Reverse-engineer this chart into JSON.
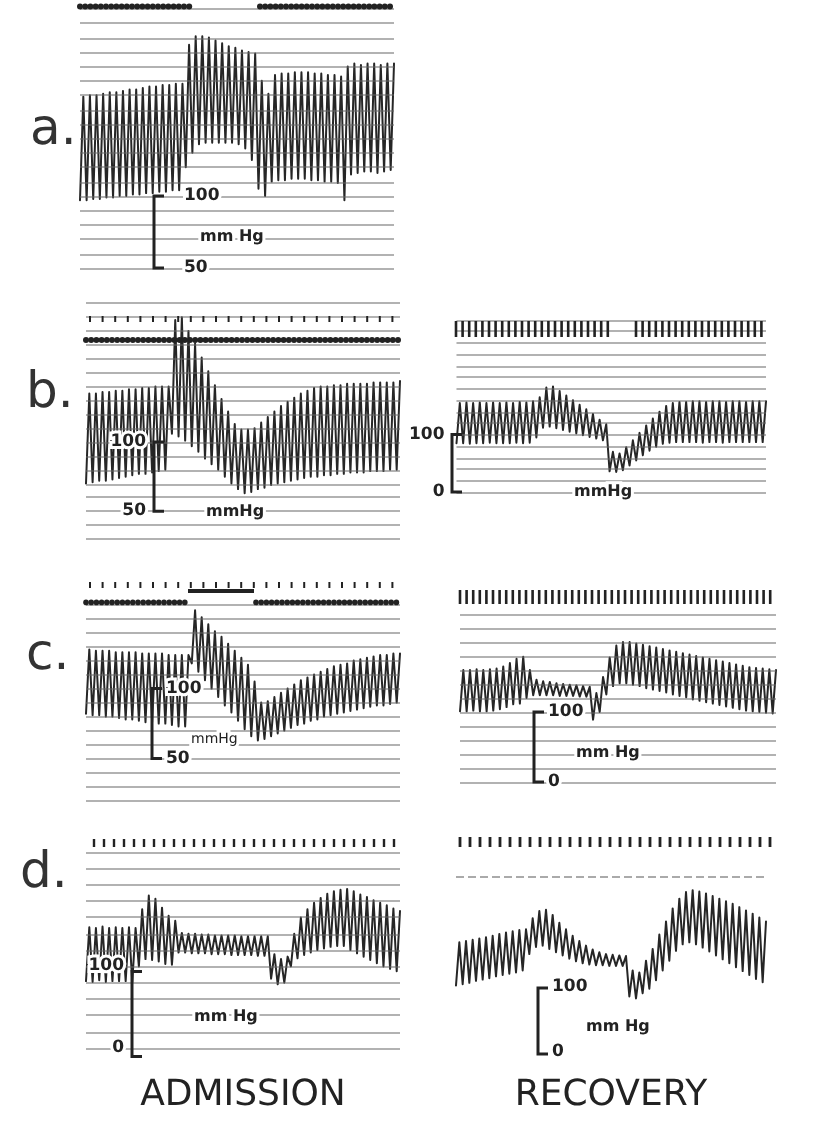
{
  "chart_data": [
    {
      "type": "line",
      "title": "a.",
      "ylabel": "mm Hg",
      "color": "#262626",
      "grid": "y",
      "tick_labels": "y",
      "ylim": [
        50,
        230
      ],
      "yticks": [
        50,
        {
          "value": 60,
          "label": null
        },
        {
          "value": 70,
          "label": null
        },
        {
          "value": 80,
          "label": null
        },
        {
          "value": 90,
          "label": null
        },
        100,
        {
          "value": 110,
          "label": null
        },
        {
          "value": 120,
          "label": null
        },
        {
          "value": 130,
          "label": null
        },
        {
          "value": 140,
          "label": null
        },
        {
          "value": 150,
          "label": null
        },
        {
          "value": 160,
          "label": null
        },
        {
          "value": 170,
          "label": null
        },
        {
          "value": 180,
          "label": null
        },
        {
          "value": 190,
          "label": null
        },
        {
          "value": 200,
          "label": null
        },
        {
          "value": 210,
          "label": null
        },
        {
          "value": 220,
          "label": null
        },
        {
          "value": 230,
          "label": null
        }
      ],
      "categories": [
        null,
        null,
        null,
        null,
        null,
        null,
        null,
        null,
        null,
        null,
        null,
        null,
        null,
        null,
        null,
        null,
        null,
        null,
        null,
        null,
        null,
        null,
        null,
        null,
        null,
        null,
        null,
        null,
        null,
        null,
        null,
        null,
        null,
        null,
        null,
        null,
        null,
        null,
        null,
        null,
        null,
        null,
        null,
        null,
        null,
        null,
        null,
        null,
        null,
        null,
        null,
        null,
        null,
        null,
        null,
        null,
        null,
        null,
        null,
        null,
        null,
        null,
        null,
        null,
        null,
        null,
        null,
        null,
        null,
        null,
        null,
        null,
        null,
        null,
        null,
        null,
        null,
        null,
        null,
        null,
        null,
        null,
        null,
        null,
        null,
        null,
        null,
        null,
        null,
        null,
        null,
        null,
        null,
        null,
        null,
        null
      ],
      "values": [
        97,
        169,
        97,
        170,
        98,
        170,
        98,
        171,
        99,
        172,
        99,
        172,
        100,
        173,
        100,
        174,
        101,
        174,
        101,
        175,
        102,
        176,
        102,
        176,
        103,
        177,
        103,
        177,
        104,
        178,
        104,
        178,
        120,
        205,
        130,
        211,
        136,
        211,
        137,
        210,
        137,
        208,
        137,
        206,
        137,
        204,
        137,
        203,
        136,
        201,
        133,
        200,
        125,
        199,
        105,
        180,
        100,
        171,
        110,
        184,
        111,
        185,
        111,
        185,
        112,
        186,
        112,
        186,
        112,
        186,
        111,
        185,
        111,
        185,
        110,
        184,
        110,
        184,
        109,
        183,
        97,
        190,
        115,
        192,
        116,
        191,
        117,
        192,
        117,
        192,
        116,
        191,
        117,
        192,
        118,
        192
      ]
    },
    {
      "type": "line",
      "title": "b.",
      "ylabel": "mmHg",
      "color": "#262626",
      "grid": "y",
      "tick_labels": "y",
      "ylim": [
        30,
        200
      ],
      "yticks": [
        {
          "value": 30,
          "label": null
        },
        {
          "value": 40,
          "label": null
        },
        50,
        {
          "value": 60,
          "label": null
        },
        {
          "value": 70,
          "label": null
        },
        {
          "value": 80,
          "label": null
        },
        {
          "value": 90,
          "label": null
        },
        100,
        {
          "value": 110,
          "label": null
        },
        {
          "value": 120,
          "label": null
        },
        {
          "value": 130,
          "label": null
        },
        {
          "value": 140,
          "label": null
        },
        {
          "value": 150,
          "label": null
        },
        {
          "value": 160,
          "label": null
        },
        {
          "value": 170,
          "label": null
        },
        {
          "value": 180,
          "label": null
        },
        {
          "value": 190,
          "label": null
        },
        {
          "value": 200,
          "label": null
        }
      ],
      "categories": [
        null,
        null,
        null,
        null,
        null,
        null,
        null,
        null,
        null,
        null,
        null,
        null,
        null,
        null,
        null,
        null,
        null,
        null,
        null,
        null,
        null,
        null,
        null,
        null,
        null,
        null,
        null,
        null,
        null,
        null,
        null,
        null,
        null,
        null,
        null,
        null,
        null,
        null,
        null,
        null,
        null,
        null,
        null,
        null,
        null,
        null,
        null,
        null,
        null,
        null,
        null,
        null,
        null,
        null,
        null,
        null,
        null,
        null,
        null,
        null,
        null,
        null,
        null,
        null,
        null,
        null,
        null,
        null,
        null,
        null,
        null,
        null,
        null,
        null,
        null,
        null,
        null,
        null,
        null,
        null,
        null,
        null,
        null,
        null,
        null,
        null,
        null,
        null,
        null,
        null,
        null,
        null,
        null,
        null,
        null,
        null
      ],
      "values": [
        70,
        135,
        71,
        135,
        72,
        136,
        72,
        136,
        73,
        137,
        74,
        137,
        75,
        138,
        76,
        138,
        77,
        139,
        77,
        139,
        78,
        140,
        79,
        140,
        80,
        140,
        106,
        188,
        104,
        190,
        101,
        180,
        97,
        171,
        93,
        161,
        88,
        151,
        84,
        141,
        80,
        131,
        75,
        122,
        70,
        113,
        66,
        109,
        63,
        109,
        64,
        110,
        66,
        114,
        67,
        118,
        69,
        122,
        70,
        126,
        71,
        129,
        72,
        132,
        73,
        135,
        74,
        137,
        75,
        139,
        75,
        140,
        76,
        140,
        76,
        141,
        77,
        141,
        77,
        142,
        78,
        142,
        78,
        142,
        78,
        142,
        79,
        143,
        79,
        143,
        79,
        143,
        80,
        143,
        80,
        144
      ]
    },
    {
      "type": "line",
      "ylabel": "mmHg",
      "color": "#262626",
      "grid": "y",
      "tick_labels": "y",
      "ylim": [
        0,
        300
      ],
      "yticks": [
        0,
        {
          "value": 20,
          "label": null
        },
        {
          "value": 40,
          "label": null
        },
        {
          "value": 60,
          "label": null
        },
        {
          "value": 80,
          "label": null
        },
        100,
        {
          "value": 120,
          "label": null
        },
        {
          "value": 140,
          "label": null
        },
        {
          "value": 160,
          "label": null
        },
        {
          "value": 180,
          "label": null
        },
        {
          "value": 200,
          "label": null
        },
        {
          "value": 220,
          "label": null
        },
        {
          "value": 240,
          "label": null
        },
        {
          "value": 260,
          "label": null
        },
        {
          "value": 280,
          "label": null
        },
        {
          "value": 300,
          "label": null
        }
      ],
      "categories": [
        null,
        null,
        null,
        null,
        null,
        null,
        null,
        null,
        null,
        null,
        null,
        null,
        null,
        null,
        null,
        null,
        null,
        null,
        null,
        null,
        null,
        null,
        null,
        null,
        null,
        null,
        null,
        null,
        null,
        null,
        null,
        null,
        null,
        null,
        null,
        null,
        null,
        null,
        null,
        null,
        null,
        null,
        null,
        null,
        null,
        null,
        null,
        null,
        null,
        null,
        null,
        null,
        null,
        null,
        null,
        null,
        null,
        null,
        null,
        null,
        null,
        null,
        null,
        null,
        null,
        null,
        null,
        null,
        null,
        null,
        null,
        null,
        null,
        null,
        null,
        null,
        null,
        null,
        null,
        null,
        null,
        null,
        null,
        null,
        null,
        null,
        null,
        null,
        null,
        null,
        null,
        null,
        null,
        null
      ],
      "values": [
        85,
        155,
        85,
        156,
        84,
        155,
        85,
        156,
        85,
        155,
        86,
        156,
        85,
        155,
        85,
        156,
        85,
        155,
        86,
        157,
        85,
        156,
        86,
        158,
        95,
        165,
        112,
        182,
        114,
        184,
        111,
        176,
        108,
        168,
        105,
        160,
        102,
        152,
        99,
        144,
        96,
        136,
        93,
        126,
        90,
        118,
        36,
        70,
        35,
        67,
        38,
        78,
        46,
        90,
        55,
        103,
        64,
        116,
        72,
        128,
        79,
        140,
        84,
        150,
        86,
        155,
        87,
        157,
        87,
        157,
        87,
        158,
        87,
        158,
        86,
        157,
        87,
        158,
        87,
        158,
        86,
        157,
        87,
        158,
        87,
        158,
        87,
        157,
        87,
        158,
        87,
        158,
        87,
        158
      ]
    },
    {
      "type": "line",
      "title": "c.",
      "ylabel": "mmHg",
      "color": "#262626",
      "grid": "y",
      "tick_labels": "y",
      "ylim": [
        20,
        160
      ],
      "yticks": [
        {
          "value": 20,
          "label": null
        },
        {
          "value": 30,
          "label": null
        },
        {
          "value": 40,
          "label": null
        },
        50,
        {
          "value": 60,
          "label": null
        },
        {
          "value": 70,
          "label": null
        },
        {
          "value": 80,
          "label": null
        },
        {
          "value": 90,
          "label": null
        },
        100,
        {
          "value": 110,
          "label": null
        },
        {
          "value": 120,
          "label": null
        },
        {
          "value": 130,
          "label": null
        },
        {
          "value": 140,
          "label": null
        },
        {
          "value": 150,
          "label": null
        },
        {
          "value": 160,
          "label": null
        }
      ],
      "categories": [
        null,
        null,
        null,
        null,
        null,
        null,
        null,
        null,
        null,
        null,
        null,
        null,
        null,
        null,
        null,
        null,
        null,
        null,
        null,
        null,
        null,
        null,
        null,
        null,
        null,
        null,
        null,
        null,
        null,
        null,
        null,
        null,
        null,
        null,
        null,
        null,
        null,
        null,
        null,
        null,
        null,
        null,
        null,
        null,
        null,
        null,
        null,
        null,
        null,
        null,
        null,
        null,
        null,
        null,
        null,
        null,
        null,
        null,
        null,
        null,
        null,
        null,
        null,
        null,
        null,
        null,
        null,
        null,
        null,
        null,
        null,
        null,
        null,
        null,
        null,
        null,
        null,
        null,
        null,
        null,
        null,
        null,
        null,
        null,
        null,
        null,
        null,
        null,
        null,
        null,
        null,
        null,
        null,
        null,
        null,
        null
      ],
      "values": [
        82,
        128,
        81,
        127,
        81,
        127,
        80,
        127,
        80,
        126,
        79,
        126,
        78,
        126,
        78,
        126,
        77,
        125,
        76,
        125,
        76,
        125,
        75,
        125,
        75,
        124,
        74,
        124,
        73,
        124,
        73,
        124,
        118,
        156,
        112,
        151,
        106,
        146,
        100,
        141,
        94,
        137,
        88,
        132,
        83,
        127,
        77,
        122,
        71,
        117,
        66,
        105,
        63,
        90,
        64,
        91,
        66,
        94,
        68,
        97,
        70,
        100,
        72,
        103,
        74,
        106,
        75,
        108,
        77,
        110,
        78,
        112,
        80,
        114,
        81,
        116,
        82,
        117,
        83,
        118,
        84,
        120,
        85,
        121,
        86,
        122,
        87,
        123,
        88,
        124,
        88,
        124,
        89,
        125,
        90,
        125
      ]
    },
    {
      "type": "line",
      "ylabel": "mm Hg",
      "color": "#262626",
      "grid": "y",
      "tick_labels": "y",
      "ylim": [
        0,
        240
      ],
      "yticks": [
        0,
        {
          "value": 20,
          "label": null
        },
        {
          "value": 40,
          "label": null
        },
        {
          "value": 60,
          "label": null
        },
        {
          "value": 80,
          "label": null
        },
        100,
        {
          "value": 120,
          "label": null
        },
        {
          "value": 140,
          "label": null
        },
        {
          "value": 160,
          "label": null
        },
        {
          "value": 180,
          "label": null
        },
        {
          "value": 200,
          "label": null
        },
        {
          "value": 220,
          "label": null
        },
        {
          "value": 240,
          "label": null
        }
      ],
      "categories": [
        null,
        null,
        null,
        null,
        null,
        null,
        null,
        null,
        null,
        null,
        null,
        null,
        null,
        null,
        null,
        null,
        null,
        null,
        null,
        null,
        null,
        null,
        null,
        null,
        null,
        null,
        null,
        null,
        null,
        null,
        null,
        null,
        null,
        null,
        null,
        null,
        null,
        null,
        null,
        null,
        null,
        null,
        null,
        null,
        null,
        null,
        null,
        null,
        null,
        null,
        null,
        null,
        null,
        null,
        null,
        null,
        null,
        null,
        null,
        null,
        null,
        null,
        null,
        null,
        null,
        null,
        null,
        null,
        null,
        null,
        null,
        null,
        null,
        null,
        null,
        null,
        null,
        null,
        null,
        null,
        null,
        null,
        null,
        null,
        null,
        null,
        null,
        null,
        null,
        null,
        null,
        null,
        null,
        null,
        null,
        null
      ],
      "values": [
        101,
        160,
        101,
        160,
        102,
        161,
        101,
        160,
        101,
        161,
        102,
        162,
        104,
        165,
        107,
        170,
        111,
        176,
        112,
        179,
        120,
        160,
        124,
        146,
        124,
        144,
        124,
        143,
        124,
        141,
        123,
        140,
        123,
        139,
        123,
        138,
        122,
        137,
        122,
        136,
        89,
        127,
        100,
        150,
        125,
        178,
        137,
        195,
        141,
        200,
        141,
        200,
        139,
        198,
        137,
        196,
        134,
        194,
        132,
        192,
        130,
        190,
        128,
        188,
        125,
        186,
        123,
        184,
        121,
        182,
        118,
        180,
        116,
        178,
        114,
        176,
        112,
        174,
        110,
        172,
        108,
        170,
        106,
        168,
        104,
        166,
        102,
        164,
        101,
        163,
        100,
        162,
        99,
        161,
        98,
        160
      ]
    },
    {
      "type": "line",
      "title": "d.",
      "xlabel": "ADMISSION",
      "ylabel": "mm Hg",
      "color": "#262626",
      "grid": "y",
      "tick_labels": "y",
      "ylim": [
        0,
        240
      ],
      "yticks": [
        0,
        {
          "value": 20,
          "label": null
        },
        {
          "value": 40,
          "label": null
        },
        {
          "value": 60,
          "label": null
        },
        {
          "value": 80,
          "label": null
        },
        100,
        {
          "value": 120,
          "label": null
        },
        {
          "value": 140,
          "label": null
        },
        {
          "value": 160,
          "label": null
        },
        {
          "value": 180,
          "label": null
        },
        {
          "value": 200,
          "label": null
        },
        {
          "value": 220,
          "label": null
        },
        {
          "value": 240,
          "label": null
        }
      ],
      "categories": [
        null,
        null,
        null,
        null,
        null,
        null,
        null,
        null,
        null,
        null,
        null,
        null,
        null,
        null,
        null,
        null,
        null,
        null,
        null,
        null,
        null,
        null,
        null,
        null,
        null,
        null,
        null,
        null,
        null,
        null,
        null,
        null,
        null,
        null,
        null,
        null,
        null,
        null,
        null,
        null,
        null,
        null,
        null,
        null,
        null,
        null,
        null,
        null,
        null,
        null,
        null,
        null,
        null,
        null,
        null,
        null,
        null,
        null,
        null,
        null,
        null,
        null,
        null,
        null,
        null,
        null,
        null,
        null,
        null,
        null,
        null,
        null,
        null,
        null,
        null,
        null,
        null,
        null,
        null,
        null,
        null,
        null,
        null,
        null,
        null,
        null,
        null,
        null,
        null,
        null,
        null,
        null,
        null,
        null,
        null,
        null
      ],
      "values": [
        82,
        148,
        81,
        147,
        83,
        149,
        81,
        147,
        82,
        148,
        82,
        147,
        82,
        148,
        81,
        147,
        100,
        170,
        109,
        187,
        108,
        183,
        106,
        172,
        103,
        162,
        102,
        156,
        117,
        141,
        117,
        140,
        116,
        140,
        116,
        139,
        116,
        139,
        115,
        138,
        115,
        138,
        115,
        138,
        114,
        138,
        114,
        137,
        114,
        137,
        114,
        137,
        113,
        137,
        113,
        137,
        85,
        115,
        78,
        109,
        80,
        112,
        100,
        140,
        110,
        160,
        114,
        170,
        117,
        178,
        120,
        184,
        122,
        189,
        124,
        192,
        125,
        194,
        125,
        195,
        120,
        192,
        116,
        188,
        112,
        185,
        108,
        181,
        104,
        178,
        100,
        175,
        97,
        171,
        94,
        168
      ]
    },
    {
      "type": "line",
      "xlabel": "RECOVERY",
      "ylabel": "mm Hg",
      "color": "#262626",
      "tick_labels": "y",
      "ylim": [
        0,
        270
      ],
      "yticks": [
        0,
        100
      ],
      "ref_lines": [
        {
          "axis": "y",
          "value": 270,
          "color": "#aaaaaa",
          "line_style": "dashed"
        }
      ],
      "categories": [
        null,
        null,
        null,
        null,
        null,
        null,
        null,
        null,
        null,
        null,
        null,
        null,
        null,
        null,
        null,
        null,
        null,
        null,
        null,
        null,
        null,
        null,
        null,
        null,
        null,
        null,
        null,
        null,
        null,
        null,
        null,
        null,
        null,
        null,
        null,
        null,
        null,
        null,
        null,
        null,
        null,
        null,
        null,
        null,
        null,
        null,
        null,
        null,
        null,
        null,
        null,
        null,
        null,
        null,
        null,
        null,
        null,
        null,
        null,
        null,
        null,
        null,
        null,
        null,
        null,
        null,
        null,
        null,
        null,
        null,
        null,
        null,
        null,
        null,
        null,
        null,
        null,
        null,
        null,
        null,
        null,
        null,
        null,
        null,
        null,
        null,
        null,
        null,
        null,
        null,
        null,
        null,
        null,
        null
      ],
      "values": [
        102,
        168,
        104,
        170,
        106,
        172,
        109,
        174,
        111,
        176,
        113,
        178,
        116,
        181,
        118,
        183,
        120,
        185,
        122,
        187,
        125,
        188,
        150,
        205,
        161,
        216,
        163,
        218,
        158,
        210,
        153,
        198,
        148,
        188,
        143,
        178,
        139,
        170,
        136,
        163,
        134,
        157,
        133,
        153,
        133,
        150,
        132,
        149,
        132,
        148,
        132,
        147,
        85,
        125,
        82,
        122,
        90,
        140,
        97,
        158,
        110,
        180,
        125,
        200,
        140,
        220,
        155,
        235,
        165,
        245,
        168,
        248,
        165,
        246,
        160,
        243,
        154,
        239,
        148,
        235,
        142,
        231,
        136,
        227,
        130,
        222,
        124,
        217,
        118,
        212,
        112,
        206,
        107,
        200
      ]
    }
  ]
}
